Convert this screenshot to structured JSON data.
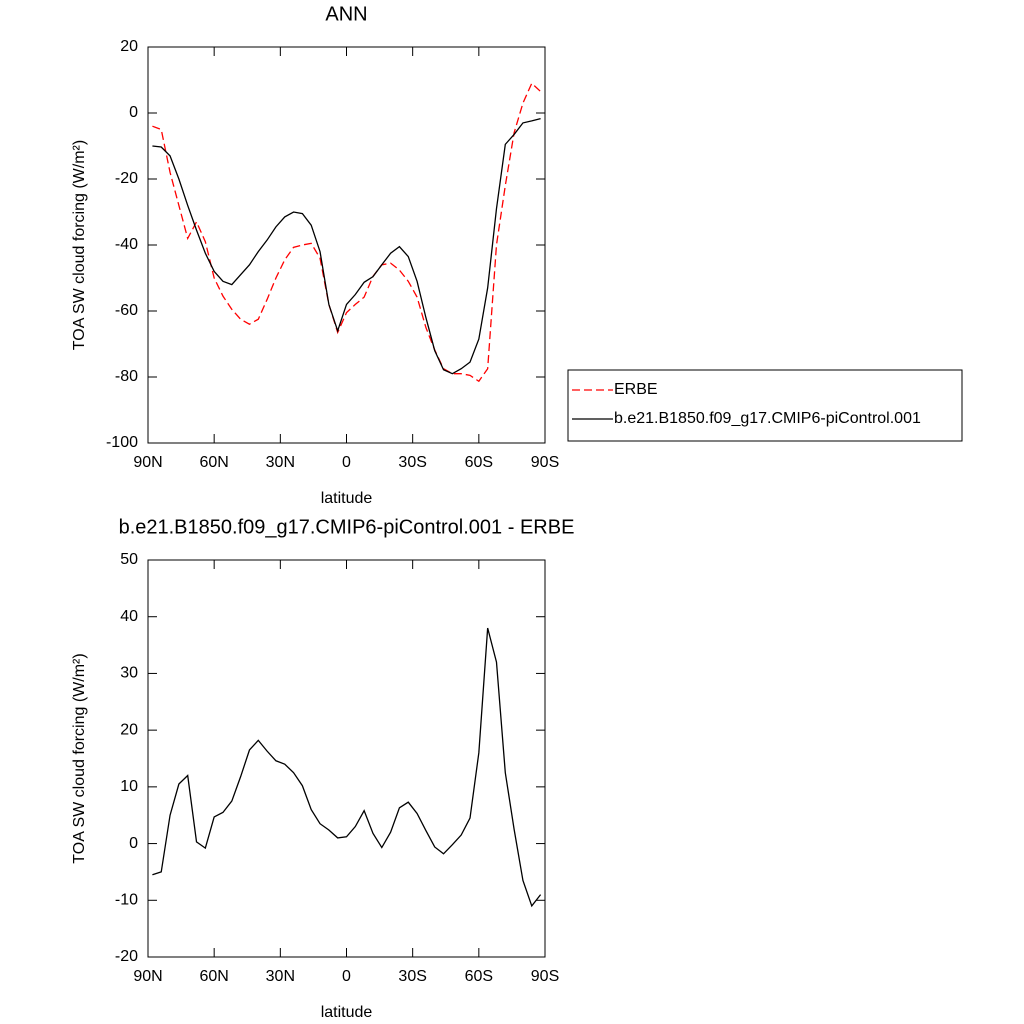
{
  "chart_data": [
    {
      "type": "line",
      "title": "ANN",
      "x_label": "latitude",
      "y_label": "TOA SW cloud forcing (W/m²)",
      "x": [
        88,
        84,
        80,
        76,
        72,
        68,
        64,
        60,
        56,
        52,
        48,
        44,
        40,
        36,
        32,
        28,
        24,
        20,
        16,
        12,
        8,
        4,
        0,
        -4,
        -8,
        -12,
        -16,
        -20,
        -24,
        -28,
        -32,
        -36,
        -40,
        -44,
        -48,
        -52,
        -56,
        -60,
        -64,
        -68,
        -72,
        -76,
        -80,
        -84,
        -88
      ],
      "series": [
        {
          "name": "ERBE",
          "color": "#ff0000",
          "dash": "dashed",
          "values": [
            -4,
            -5,
            -18,
            -28,
            -38,
            -33,
            -39,
            -50,
            -55.5,
            -59.5,
            -62.5,
            -64,
            -62.5,
            -56.5,
            -50,
            -44.5,
            -40.7,
            -40,
            -39.5,
            -44,
            -58,
            -66.5,
            -60.5,
            -58,
            -55.8,
            -49.5,
            -46,
            -45.5,
            -47.6,
            -51,
            -55.8,
            -65,
            -71.8,
            -77.5,
            -79,
            -79,
            -79.5,
            -81.3,
            -77.5,
            -40,
            -22,
            -6,
            3,
            9,
            6.5
          ]
        },
        {
          "name": "b.e21.B1850.f09_g17.CMIP6-piControl.001",
          "color": "#000000",
          "dash": "solid",
          "values": [
            -10,
            -10.3,
            -13,
            -20,
            -28,
            -35.5,
            -42.5,
            -48,
            -51,
            -52,
            -49,
            -46,
            -42,
            -38.5,
            -34.5,
            -31.5,
            -30,
            -30.5,
            -34,
            -42,
            -58,
            -66,
            -58,
            -55,
            -51.3,
            -49.6,
            -46,
            -42.5,
            -40.5,
            -43.5,
            -51,
            -62,
            -72,
            -77.8,
            -79,
            -77.5,
            -75.5,
            -68.5,
            -53,
            -29,
            -9.5,
            -6.5,
            -3,
            -2.4,
            -1.7
          ]
        }
      ],
      "xlim": [
        90,
        -90
      ],
      "xticks": [
        {
          "value": 90,
          "label": "90N"
        },
        {
          "value": 60,
          "label": "60N"
        },
        {
          "value": 30,
          "label": "30N"
        },
        0,
        {
          "value": -30,
          "label": "30S"
        },
        {
          "value": -60,
          "label": "60S"
        },
        {
          "value": -90,
          "label": "90S"
        }
      ],
      "ylim": [
        -100,
        20
      ],
      "yticks": [
        -100,
        -80,
        -60,
        -40,
        -20,
        0,
        20
      ],
      "legend": "right"
    },
    {
      "type": "line",
      "title": "b.e21.B1850.f09_g17.CMIP6-piControl.001 - ERBE",
      "x_label": "latitude",
      "y_label": "TOA SW cloud forcing (W/m²)",
      "x": [
        88,
        84,
        80,
        76,
        72,
        68,
        64,
        60,
        56,
        52,
        48,
        44,
        40,
        36,
        32,
        28,
        24,
        20,
        16,
        12,
        8,
        4,
        0,
        -4,
        -8,
        -12,
        -16,
        -20,
        -24,
        -28,
        -32,
        -36,
        -40,
        -44,
        -48,
        -52,
        -56,
        -60,
        -64,
        -68,
        -72,
        -76,
        -80,
        -84,
        -88
      ],
      "color": "#000000",
      "values": [
        -5.5,
        -5,
        5,
        10.5,
        12,
        0.3,
        -0.8,
        4.7,
        5.5,
        7.5,
        11.8,
        16.5,
        18.2,
        16.3,
        14.6,
        14,
        12.5,
        10.2,
        6,
        3.5,
        2.4,
        1,
        1.2,
        3,
        5.8,
        1.8,
        -0.7,
        2,
        6.3,
        7.3,
        5.3,
        2.3,
        -0.6,
        -1.8,
        -0.2,
        1.5,
        4.5,
        16,
        38,
        32,
        12.5,
        2.5,
        -6.5,
        -11,
        -9
      ],
      "xlim": [
        90,
        -90
      ],
      "xticks": [
        {
          "value": 90,
          "label": "90N"
        },
        {
          "value": 60,
          "label": "60N"
        },
        {
          "value": 30,
          "label": "30N"
        },
        0,
        {
          "value": -30,
          "label": "30S"
        },
        {
          "value": -60,
          "label": "60S"
        },
        {
          "value": -90,
          "label": "90S"
        }
      ],
      "ylim": [
        -20,
        50
      ],
      "yticks": [
        -20,
        -10,
        0,
        10,
        20,
        30,
        40,
        50
      ]
    }
  ]
}
